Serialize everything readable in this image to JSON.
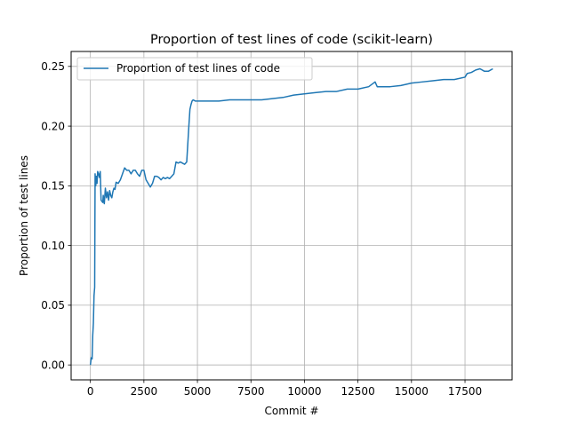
{
  "chart_data": {
    "type": "line",
    "title": "Proportion of test lines of code (scikit-learn)",
    "xlabel": "Commit #",
    "ylabel": "Proportion of test lines",
    "xlim": [
      -900,
      19700
    ],
    "ylim": [
      -0.0125,
      0.2625
    ],
    "xticks": [
      0,
      2500,
      5000,
      7500,
      10000,
      12500,
      15000,
      17500
    ],
    "xtick_labels": [
      "0",
      "2500",
      "5000",
      "7500",
      "10000",
      "12500",
      "15000",
      "17500"
    ],
    "yticks": [
      0.0,
      0.05,
      0.1,
      0.15,
      0.2,
      0.25
    ],
    "ytick_labels": [
      "0.00",
      "0.05",
      "0.10",
      "0.15",
      "0.20",
      "0.25"
    ],
    "grid": true,
    "legend_position": "top-left",
    "colors": {
      "series": "#1f77b4",
      "grid": "#b0b0b0",
      "axes": "#000000"
    },
    "series": [
      {
        "name": "Proportion of test lines of code",
        "x": [
          0,
          40,
          80,
          110,
          140,
          170,
          200,
          220,
          250,
          280,
          310,
          340,
          380,
          420,
          460,
          500,
          540,
          580,
          600,
          650,
          700,
          750,
          800,
          850,
          900,
          950,
          1000,
          1050,
          1100,
          1150,
          1200,
          1300,
          1400,
          1500,
          1600,
          1700,
          1800,
          1900,
          2000,
          2100,
          2200,
          2300,
          2400,
          2500,
          2600,
          2700,
          2800,
          2900,
          3000,
          3100,
          3200,
          3300,
          3400,
          3500,
          3600,
          3700,
          3800,
          3900,
          4000,
          4100,
          4200,
          4300,
          4400,
          4500,
          4600,
          4650,
          4700,
          4750,
          4800,
          4900,
          5000,
          5500,
          6000,
          6500,
          7000,
          7500,
          8000,
          8500,
          9000,
          9500,
          10000,
          10500,
          11000,
          11500,
          12000,
          12500,
          13000,
          13300,
          13400,
          13500,
          14000,
          14500,
          15000,
          15500,
          16000,
          16500,
          17000,
          17500,
          17600,
          17800,
          18000,
          18200,
          18400,
          18600,
          18800
        ],
        "y": [
          0.0,
          0.006,
          0.005,
          0.025,
          0.035,
          0.058,
          0.065,
          0.16,
          0.15,
          0.158,
          0.152,
          0.162,
          0.16,
          0.157,
          0.162,
          0.138,
          0.137,
          0.136,
          0.142,
          0.135,
          0.148,
          0.14,
          0.145,
          0.138,
          0.146,
          0.142,
          0.14,
          0.145,
          0.148,
          0.147,
          0.153,
          0.152,
          0.155,
          0.16,
          0.165,
          0.163,
          0.163,
          0.16,
          0.163,
          0.163,
          0.16,
          0.158,
          0.163,
          0.163,
          0.155,
          0.152,
          0.149,
          0.152,
          0.158,
          0.158,
          0.157,
          0.155,
          0.157,
          0.156,
          0.157,
          0.156,
          0.158,
          0.16,
          0.17,
          0.169,
          0.17,
          0.169,
          0.168,
          0.17,
          0.2,
          0.214,
          0.218,
          0.221,
          0.222,
          0.221,
          0.221,
          0.221,
          0.221,
          0.222,
          0.222,
          0.222,
          0.222,
          0.223,
          0.224,
          0.226,
          0.227,
          0.228,
          0.229,
          0.229,
          0.231,
          0.231,
          0.233,
          0.237,
          0.233,
          0.233,
          0.233,
          0.234,
          0.236,
          0.237,
          0.238,
          0.239,
          0.239,
          0.241,
          0.244,
          0.245,
          0.247,
          0.248,
          0.246,
          0.246,
          0.248
        ]
      }
    ]
  }
}
